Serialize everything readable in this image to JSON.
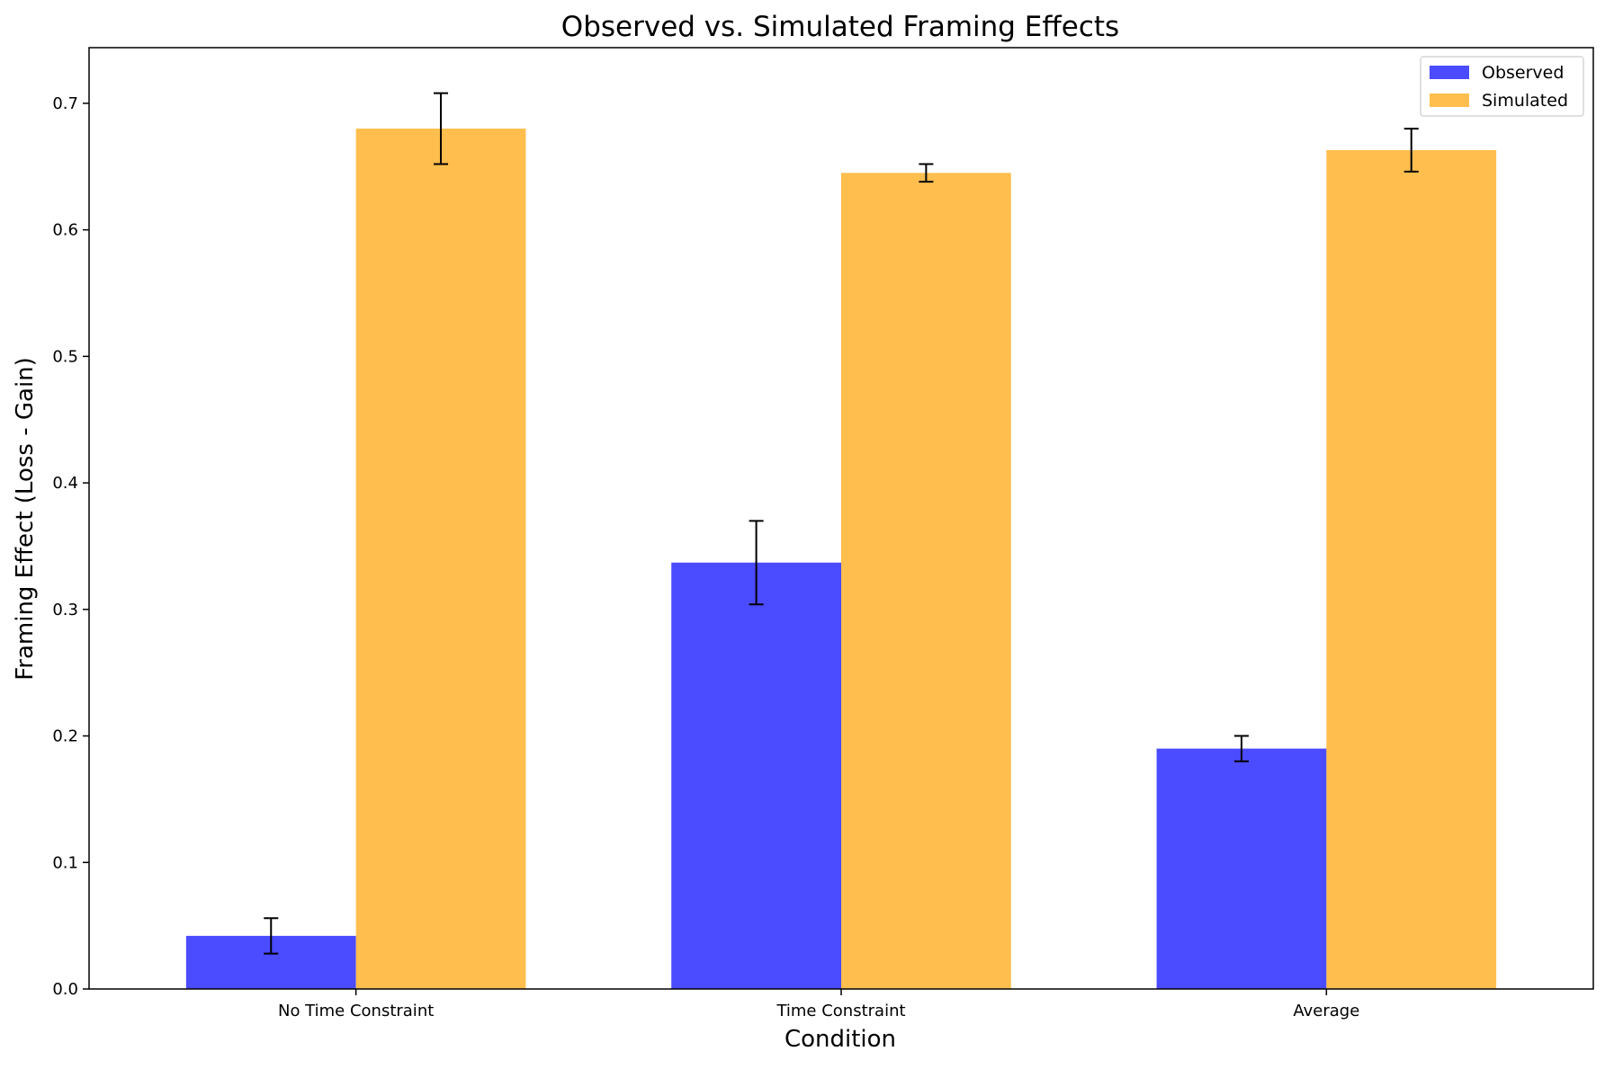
{
  "chart_data": {
    "type": "bar",
    "title": "Observed vs. Simulated Framing Effects",
    "xlabel": "Condition",
    "ylabel": "Framing Effect (Loss - Gain)",
    "categories": [
      "No Time Constraint",
      "Time Constraint",
      "Average"
    ],
    "series": [
      {
        "name": "Observed",
        "color": "#4b4bff",
        "values": [
          0.042,
          0.337,
          0.19
        ],
        "errors": [
          0.014,
          0.033,
          0.01
        ]
      },
      {
        "name": "Simulated",
        "color": "#ffbe4d",
        "values": [
          0.68,
          0.645,
          0.663
        ],
        "errors": [
          0.028,
          0.007,
          0.017
        ]
      }
    ],
    "ylim": [
      0,
      0.744
    ],
    "yticks": [
      "0.0",
      "0.1",
      "0.2",
      "0.3",
      "0.4",
      "0.5",
      "0.6",
      "0.7"
    ],
    "grid": false,
    "legend_position": "top-right"
  }
}
